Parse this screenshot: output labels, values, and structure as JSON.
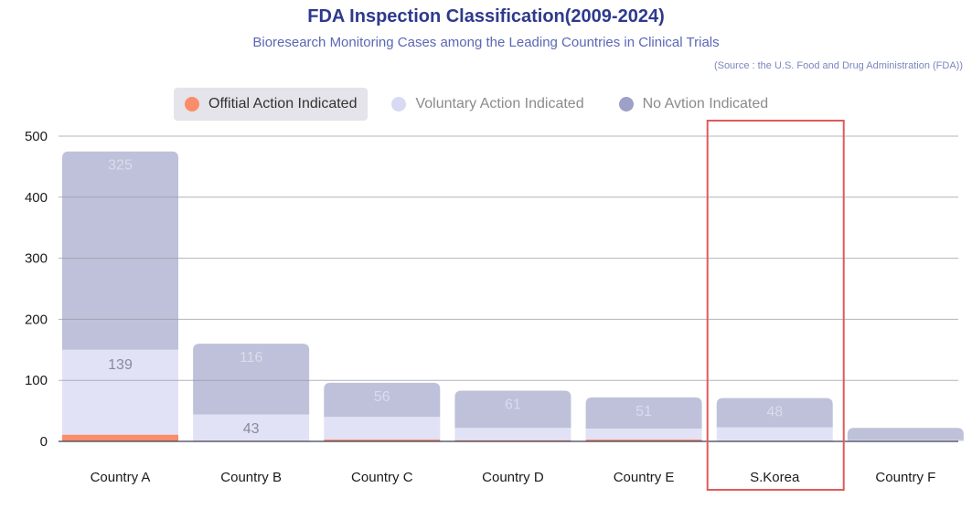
{
  "chart_data": {
    "type": "bar",
    "stacked": true,
    "title": "FDA Inspection Classification(2009-2024)",
    "subtitle": "Bioresearch Monitoring Cases among the Leading Countries in Clinical Trials",
    "source": "(Source : the U.S. Food and Drug Administration (FDA))",
    "categories": [
      "Country A",
      "Country B",
      "Country C",
      "Country D",
      "Country E",
      "S.Korea",
      "Country F"
    ],
    "series": [
      {
        "name": "Offitial Action Indicated",
        "color": "#fa8c6a",
        "values": [
          11,
          1,
          3,
          2,
          3,
          1,
          0
        ],
        "labels": [
          "",
          "",
          "",
          "",
          "",
          "",
          ""
        ]
      },
      {
        "name": "Voluntary Action Indicated",
        "color": "#e1e2f6",
        "values": [
          139,
          43,
          37,
          20,
          18,
          22,
          2
        ],
        "labels": [
          "139",
          "43",
          "",
          "",
          "",
          "",
          ""
        ]
      },
      {
        "name": "No Avtion Indicated",
        "color": "#bec1d9",
        "values": [
          325,
          116,
          56,
          61,
          51,
          48,
          20
        ],
        "labels": [
          "325",
          "116",
          "56",
          "61",
          "51",
          "48",
          ""
        ]
      }
    ],
    "ylim": [
      0,
      500
    ],
    "yticks": [
      "0",
      "100",
      "200",
      "300",
      "400",
      "500"
    ],
    "ytick_values": [
      0,
      100,
      200,
      300,
      400,
      500
    ],
    "grid": true,
    "legend_position": "top",
    "highlight_category": "S.Korea",
    "highlight_color": "#e05a5a"
  },
  "legend": [
    {
      "label": "Offitial Action Indicated",
      "color": "#fa8c6a"
    },
    {
      "label": "Voluntary Action Indicated",
      "color": "#d8d9f3"
    },
    {
      "label": "No Avtion Indicated",
      "color": "#9da1c7"
    }
  ]
}
